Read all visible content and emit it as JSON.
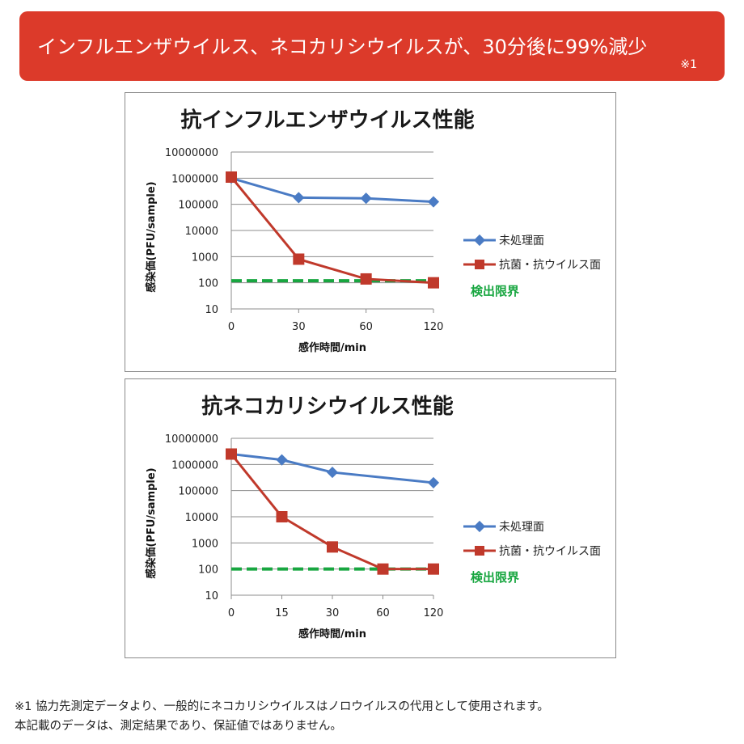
{
  "banner": {
    "title": "インフルエンザウイルス、ネコカリシウイルスが、30分後に99%減少",
    "note": "※1"
  },
  "colors": {
    "banner_bg": "#dc3a2a",
    "untreated": "#4a7bc4",
    "treated": "#c0392b",
    "limit": "#18a640"
  },
  "chart_data": [
    {
      "type": "line",
      "title": "抗インフルエンザウイルス性能",
      "xlabel": "感作時間/min",
      "ylabel": "感染価(PFU/sample)",
      "x": [
        "0",
        "30",
        "60",
        "120"
      ],
      "y_scale": "log",
      "ylim": [
        10,
        10000000
      ],
      "y_ticks": [
        "10000000",
        "1000000",
        "100000",
        "10000",
        "1000",
        "100",
        "10"
      ],
      "grid": true,
      "legend_position": "right",
      "series": [
        {
          "name": "未処理面",
          "values": [
            1000000,
            180000,
            170000,
            125000
          ],
          "marker": "diamond",
          "color": "#4a7bc4"
        },
        {
          "name": "抗菌・抗ウイルス面",
          "values": [
            1100000,
            800,
            140,
            100
          ],
          "marker": "square",
          "color": "#c0392b"
        }
      ],
      "reference_line": {
        "name": "検出限界",
        "value": 120,
        "style": "dashed",
        "color": "#18a640"
      }
    },
    {
      "type": "line",
      "title": "抗ネコカリシウイルス性能",
      "xlabel": "感作時間/min",
      "ylabel": "感染価(PFU/sample)",
      "x": [
        "0",
        "15",
        "30",
        "60",
        "120"
      ],
      "y_scale": "log",
      "ylim": [
        10,
        10000000
      ],
      "y_ticks": [
        "10000000",
        "1000000",
        "100000",
        "10000",
        "1000",
        "100",
        "10"
      ],
      "grid": true,
      "legend_position": "right",
      "series": [
        {
          "name": "未処理面",
          "values": [
            2500000,
            1500000,
            500000,
            null,
            200000
          ],
          "marker": "diamond",
          "color": "#4a7bc4"
        },
        {
          "name": "抗菌・抗ウイルス面",
          "values": [
            2500000,
            10000,
            700,
            100,
            100
          ],
          "marker": "square",
          "color": "#c0392b"
        }
      ],
      "reference_line": {
        "name": "検出限界",
        "value": 100,
        "style": "dashed",
        "color": "#18a640"
      }
    }
  ],
  "footnotes": [
    "※1 協力先測定データより、一般的にネコカリシウイルスはノロウイルスの代用として使用されます。",
    "本記載のデータは、測定結果であり、保証値ではありません。"
  ]
}
